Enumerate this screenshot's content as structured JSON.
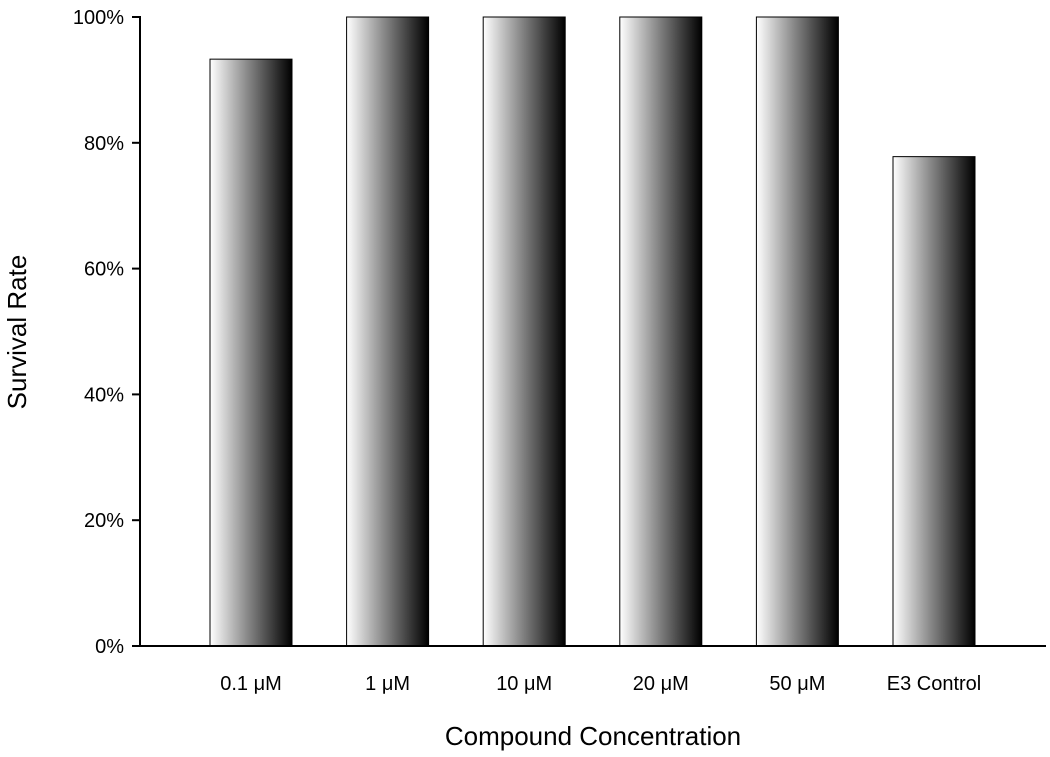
{
  "chart_data": {
    "type": "bar",
    "title": "",
    "xlabel": "Compound Concentration",
    "ylabel": "Survival Rate",
    "categories": [
      "0.1 μM",
      "1 μM",
      "10 μM",
      "20 μM",
      "50 μM",
      "E3 Control"
    ],
    "values": [
      93.3,
      100,
      100,
      100,
      100,
      77.8
    ],
    "ylim": [
      0,
      100
    ],
    "yticks": [
      0,
      20,
      40,
      60,
      80,
      100
    ],
    "ytick_labels": [
      "0%",
      "20%",
      "40%",
      "60%",
      "80%",
      "100%"
    ],
    "grid": false,
    "legend": "none",
    "bar_fill": "gradient light-to-dark",
    "colors": {
      "gradient_start": "#ffffff",
      "gradient_end": "#000000",
      "axis": "#000000"
    }
  }
}
